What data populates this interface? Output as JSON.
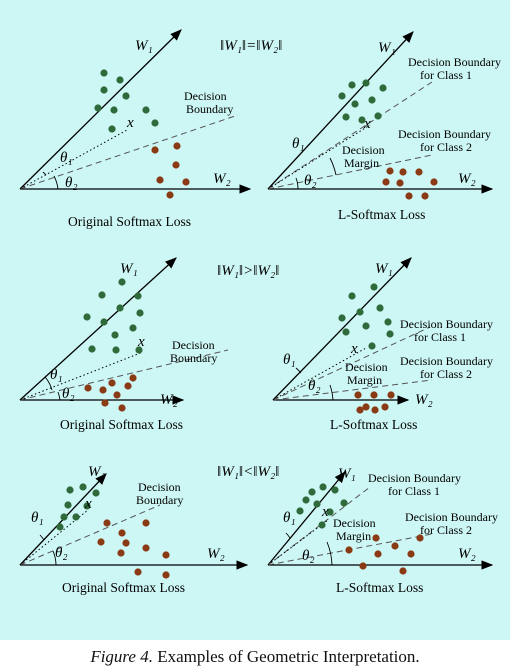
{
  "rows": [
    {
      "norm_label": "‖W₁‖=‖W₂‖",
      "left": {
        "w1": "W₁",
        "w2": "W₂",
        "x": "x",
        "theta1": "θ₁",
        "theta2": "θ₂",
        "boundary_line1": "Decision",
        "boundary_line2": "Boundary",
        "title": "Original Softmax Loss"
      },
      "right": {
        "w1": "W₁",
        "w2": "W₂",
        "x": "x",
        "theta1": "θ₁",
        "theta2": "θ₂",
        "b1_line1": "Decision Boundary",
        "b1_line2": "for Class 1",
        "b2_line1": "Decision Boundary",
        "b2_line2": "for Class 2",
        "margin_line1": "Decision",
        "margin_line2": "Margin",
        "title": "L-Softmax Loss"
      }
    },
    {
      "norm_label": "‖W₁‖>‖W₂‖",
      "left": {
        "w1": "W₁",
        "w2": "W₂",
        "x": "x",
        "theta1": "θ₁",
        "theta2": "θ₂",
        "boundary_line1": "Decision",
        "boundary_line2": "Boundary",
        "title": "Original Softmax Loss"
      },
      "right": {
        "w1": "W₁",
        "w2": "W₂",
        "x": "x",
        "theta1": "θ₁",
        "theta2": "θ₂",
        "b1_line1": "Decision Boundary",
        "b1_line2": "for Class 1",
        "b2_line1": "Decision Boundary",
        "b2_line2": "for Class 2",
        "margin_line1": "Decision",
        "margin_line2": "Margin",
        "title": "L-Softmax Loss"
      }
    },
    {
      "norm_label": "‖W₁‖<‖W₂‖",
      "left": {
        "w1": "W₁",
        "w2": "W₂",
        "x": "x",
        "theta1": "θ₁",
        "theta2": "θ₂",
        "boundary_line1": "Decision",
        "boundary_line2": "Boundary",
        "title": "Original Softmax Loss"
      },
      "right": {
        "w1": "W₁",
        "w2": "W₂",
        "x": "x",
        "theta1": "θ₁",
        "theta2": "θ₂",
        "b1_line1": "Decision Boundary",
        "b1_line2": "for Class 1",
        "b2_line1": "Decision Boundary",
        "b2_line2": "for Class 2",
        "margin_line1": "Decision",
        "margin_line2": "Margin",
        "title": "L-Softmax Loss"
      }
    }
  ],
  "caption": {
    "label": "Figure 4.",
    "text": "Examples of Geometric Interpretation."
  },
  "colors": {
    "background": "#cdf7f4",
    "class1": "#2f6b3a",
    "class2": "#8a3a14"
  }
}
